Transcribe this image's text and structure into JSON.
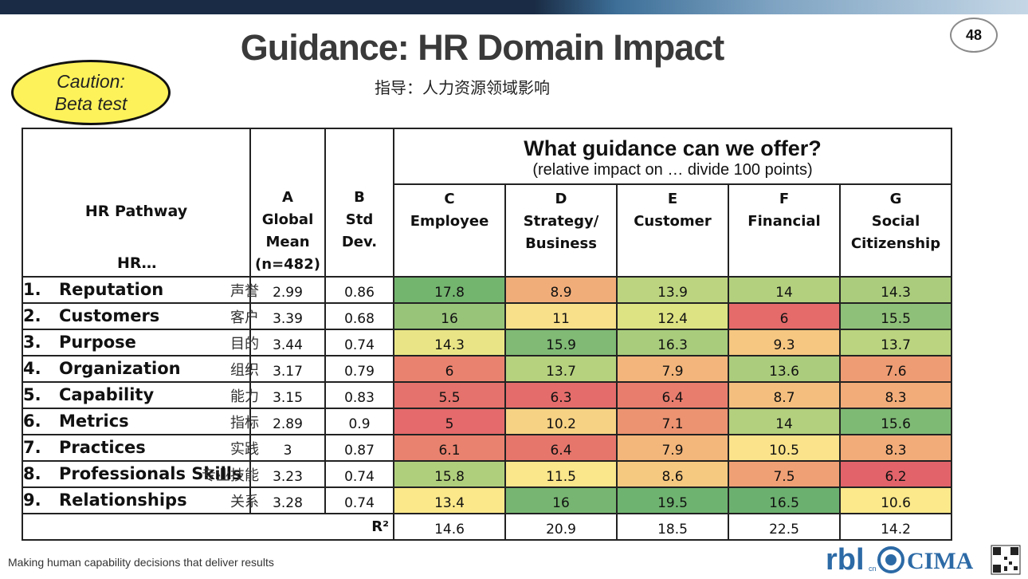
{
  "page_number": "48",
  "title": "Guidance: HR Domain Impact",
  "subtitle": "指导：人力资源领域影响",
  "caution": {
    "line1": "Caution:",
    "line2": "Beta test"
  },
  "table": {
    "pathway_header": {
      "line1": "HR Pathway",
      "line2": "HR…"
    },
    "col_a": [
      "A",
      "Global",
      "Mean",
      "(n=482)"
    ],
    "col_b": [
      "B",
      "Std",
      "Dev."
    ],
    "guidance_title": "What guidance can we offer?",
    "guidance_subtitle": "(relative impact on … divide 100 points)",
    "impact_cols": [
      {
        "letter": "C",
        "line1": "Employee",
        "line2": ""
      },
      {
        "letter": "D",
        "line1": "Strategy/",
        "line2": "Business"
      },
      {
        "letter": "E",
        "line1": "Customer",
        "line2": ""
      },
      {
        "letter": "F",
        "line1": "Financial",
        "line2": ""
      },
      {
        "letter": "G",
        "line1": "Social",
        "line2": "Citizenship"
      }
    ],
    "rows": [
      {
        "num": "1.",
        "name": "Reputation",
        "zh": "声誉",
        "mean": "2.99",
        "sd": "0.86",
        "cells": [
          {
            "v": "17.8",
            "c": "#73b46f"
          },
          {
            "v": "8.9",
            "c": "#f1ad79"
          },
          {
            "v": "13.9",
            "c": "#bcd47f"
          },
          {
            "v": "14",
            "c": "#b3d07e"
          },
          {
            "v": "14.3",
            "c": "#aacc7c"
          }
        ]
      },
      {
        "num": "2.",
        "name": "Customers",
        "zh": "客户",
        "mean": "3.39",
        "sd": "0.68",
        "cells": [
          {
            "v": "16",
            "c": "#98c47a"
          },
          {
            "v": "11",
            "c": "#f8e08a"
          },
          {
            "v": "12.4",
            "c": "#dde283"
          },
          {
            "v": "6",
            "c": "#e56a6a"
          },
          {
            "v": "15.5",
            "c": "#8fc079"
          }
        ]
      },
      {
        "num": "3.",
        "name": "Purpose",
        "zh": "目的",
        "mean": "3.44",
        "sd": "0.74",
        "cells": [
          {
            "v": "14.3",
            "c": "#e9e586"
          },
          {
            "v": "15.9",
            "c": "#80ba75"
          },
          {
            "v": "16.3",
            "c": "#a8cc7c"
          },
          {
            "v": "9.3",
            "c": "#f6c781"
          },
          {
            "v": "13.7",
            "c": "#bad47f"
          }
        ]
      },
      {
        "num": "4.",
        "name": "Organization",
        "zh": "组织",
        "mean": "3.17",
        "sd": "0.79",
        "cells": [
          {
            "v": "6",
            "c": "#e9826f"
          },
          {
            "v": "13.7",
            "c": "#b6d27e"
          },
          {
            "v": "7.9",
            "c": "#f3b57b"
          },
          {
            "v": "13.6",
            "c": "#aacc7c"
          },
          {
            "v": "7.6",
            "c": "#ee9c73"
          }
        ]
      },
      {
        "num": "5.",
        "name": "Capability",
        "zh": "能力",
        "mean": "3.15",
        "sd": "0.83",
        "cells": [
          {
            "v": "5.5",
            "c": "#e5726c"
          },
          {
            "v": "6.3",
            "c": "#e46d6b"
          },
          {
            "v": "6.4",
            "c": "#e87d6e"
          },
          {
            "v": "8.7",
            "c": "#f4bf7e"
          },
          {
            "v": "8.3",
            "c": "#f2ac79"
          }
        ]
      },
      {
        "num": "6.",
        "name": "Metrics",
        "zh": "指标",
        "mean": "2.89",
        "sd": "0.9",
        "cells": [
          {
            "v": "5",
            "c": "#e46a6b"
          },
          {
            "v": "10.2",
            "c": "#f6d284"
          },
          {
            "v": "7.1",
            "c": "#ec9371"
          },
          {
            "v": "14",
            "c": "#b3d07e"
          },
          {
            "v": "15.6",
            "c": "#7fba75"
          }
        ]
      },
      {
        "num": "7.",
        "name": "Practices",
        "zh": "实践",
        "mean": "3",
        "sd": "0.87",
        "cells": [
          {
            "v": "6.1",
            "c": "#e9826f"
          },
          {
            "v": "6.4",
            "c": "#e6766c"
          },
          {
            "v": "7.9",
            "c": "#f3b67b"
          },
          {
            "v": "10.5",
            "c": "#fbe38b"
          },
          {
            "v": "8.3",
            "c": "#f2ac79"
          }
        ]
      },
      {
        "num": "8.",
        "name": "Professionals Skills",
        "zh": "专业技能",
        "mean": "3.23",
        "sd": "0.74",
        "cells": [
          {
            "v": "15.8",
            "c": "#b0cf7d"
          },
          {
            "v": "11.5",
            "c": "#fae68b"
          },
          {
            "v": "8.6",
            "c": "#f6c980"
          },
          {
            "v": "7.5",
            "c": "#f0a075"
          },
          {
            "v": "6.2",
            "c": "#e2636a"
          }
        ]
      },
      {
        "num": "9.",
        "name": "Relationships",
        "zh": "关系",
        "mean": "3.28",
        "sd": "0.74",
        "cells": [
          {
            "v": "13.4",
            "c": "#fbe88b"
          },
          {
            "v": "16",
            "c": "#77b672"
          },
          {
            "v": "19.5",
            "c": "#6fb370"
          },
          {
            "v": "16.5",
            "c": "#6cb06f"
          },
          {
            "v": "10.6",
            "c": "#fbe98b"
          }
        ]
      }
    ],
    "r2_label": "R²",
    "r2_values": [
      "14.6",
      "20.9",
      "18.5",
      "22.5",
      "14.2"
    ]
  },
  "footer": "Making human capability decisions that deliver results",
  "logos": {
    "rbl": "rbl",
    "rbl_sub": "cn",
    "cima": "CIMA"
  }
}
